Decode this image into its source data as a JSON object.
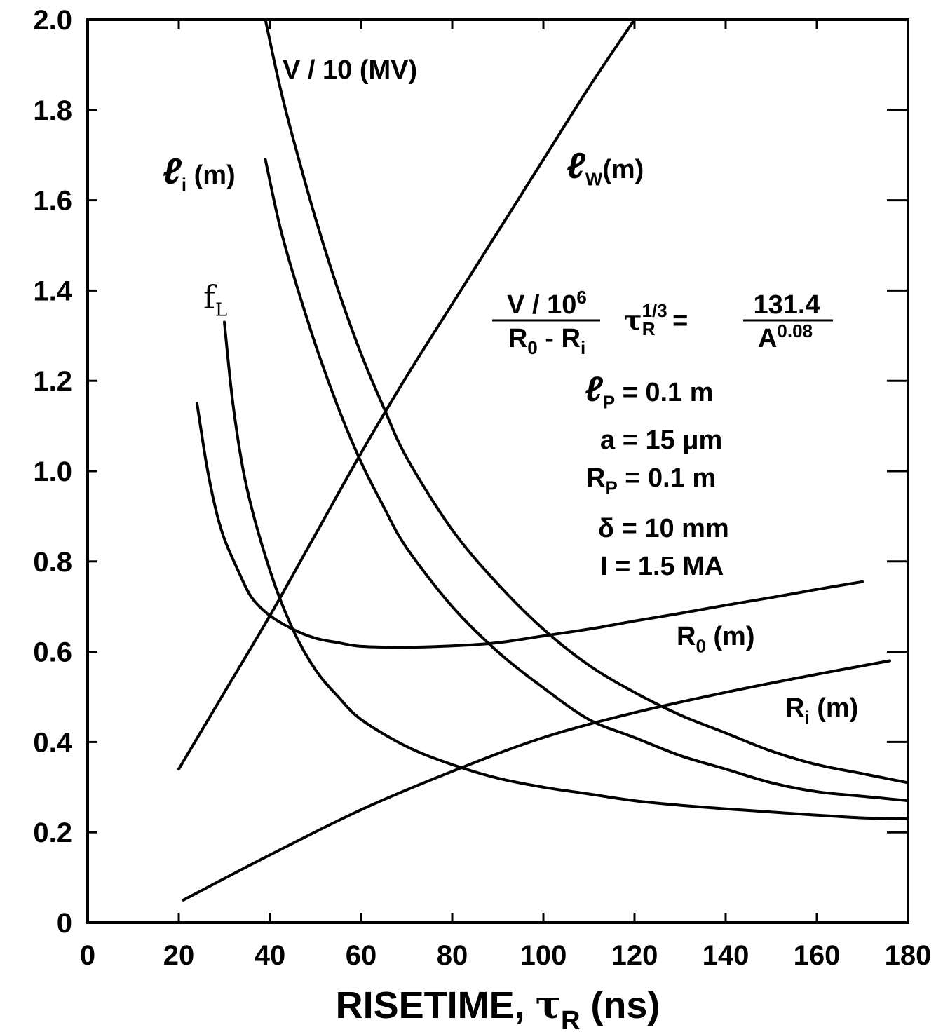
{
  "chart_data": {
    "type": "line",
    "xlabel_parts": {
      "main": "RISETIME, ",
      "symbol": "τ",
      "sub": "R",
      "unit": " (ns)"
    },
    "xlim": [
      0,
      180
    ],
    "ylim": [
      0,
      2.0
    ],
    "x_ticks": [
      "0",
      "20",
      "40",
      "60",
      "80",
      "100",
      "120",
      "140",
      "160",
      "180"
    ],
    "y_ticks": [
      "0",
      "0.2",
      "0.4",
      "0.6",
      "0.8",
      "1.0",
      "1.2",
      "1.4",
      "1.6",
      "1.8",
      "2.0"
    ],
    "series": [
      {
        "key": "v10",
        "label_parts": {
          "main": "V / 10 (MV)"
        },
        "x": [
          39,
          42,
          45,
          50,
          55,
          60,
          65,
          70,
          80,
          90,
          100,
          110,
          120,
          130,
          140,
          150,
          160,
          170,
          180
        ],
        "y": [
          2.0,
          1.86,
          1.74,
          1.56,
          1.4,
          1.26,
          1.14,
          1.03,
          0.87,
          0.75,
          0.65,
          0.57,
          0.51,
          0.46,
          0.42,
          0.38,
          0.35,
          0.33,
          0.31
        ]
      },
      {
        "key": "li",
        "label_parts": {
          "main": "ℓ",
          "sub": "i",
          "unit": " (m)"
        },
        "x": [
          39,
          42,
          45,
          50,
          55,
          60,
          65,
          70,
          80,
          90,
          100,
          110,
          120,
          130,
          140,
          150,
          160,
          170,
          180
        ],
        "y": [
          1.69,
          1.55,
          1.44,
          1.28,
          1.14,
          1.02,
          0.92,
          0.83,
          0.7,
          0.6,
          0.52,
          0.45,
          0.41,
          0.37,
          0.34,
          0.31,
          0.29,
          0.28,
          0.27
        ]
      },
      {
        "key": "fl",
        "label_parts": {
          "main": "f",
          "sub": "L"
        },
        "x": [
          30,
          32,
          35,
          40,
          45,
          50,
          55,
          60,
          70,
          80,
          90,
          100,
          110,
          120,
          130,
          140,
          150,
          160,
          170,
          180
        ],
        "y": [
          1.33,
          1.14,
          0.96,
          0.78,
          0.65,
          0.56,
          0.5,
          0.45,
          0.39,
          0.35,
          0.32,
          0.3,
          0.285,
          0.27,
          0.26,
          0.252,
          0.245,
          0.238,
          0.232,
          0.23
        ]
      },
      {
        "key": "r0",
        "label_parts": {
          "main": "R",
          "sub": "0",
          "unit": " (m)"
        },
        "x": [
          24,
          26,
          28,
          30,
          33,
          36,
          40,
          45,
          50,
          55,
          60,
          70,
          80,
          90,
          100,
          110,
          120,
          130,
          140,
          150,
          160,
          170
        ],
        "y": [
          1.15,
          1.02,
          0.92,
          0.85,
          0.78,
          0.72,
          0.68,
          0.65,
          0.63,
          0.62,
          0.612,
          0.61,
          0.613,
          0.62,
          0.635,
          0.65,
          0.668,
          0.685,
          0.703,
          0.72,
          0.738,
          0.755
        ]
      },
      {
        "key": "ri",
        "label_parts": {
          "main": "R",
          "sub": "i",
          "unit": " (m)"
        },
        "x": [
          21,
          40,
          60,
          80,
          100,
          120,
          140,
          160,
          176
        ],
        "y": [
          0.05,
          0.15,
          0.25,
          0.335,
          0.41,
          0.465,
          0.51,
          0.55,
          0.58
        ]
      },
      {
        "key": "lw",
        "label_parts": {
          "main": "ℓ",
          "sub": "W",
          "unit": "(m)"
        },
        "x": [
          20,
          30,
          40,
          50,
          60,
          70,
          80,
          90,
          100,
          110,
          120
        ],
        "y": [
          0.34,
          0.51,
          0.68,
          0.86,
          1.04,
          1.21,
          1.37,
          1.53,
          1.69,
          1.85,
          2.0
        ]
      }
    ],
    "formula": {
      "num": "V / 10",
      "num_sup": "6",
      "den_a": "R",
      "den_a_sub": "0",
      "den_mid": " - R",
      "den_b_sub": "i",
      "tau": "τ",
      "tau_sub": "R",
      "tau_sup": "1/3",
      "eq": " =",
      "rhs_num": "131.4",
      "rhs_den": "A",
      "rhs_den_sup": "0.08"
    },
    "parameters": [
      {
        "key": "lp",
        "parts": {
          "main": "ℓ",
          "sub": "P",
          "rest": " = 0.1 m"
        }
      },
      {
        "key": "a",
        "parts": {
          "main": "a = 15 μm"
        }
      },
      {
        "key": "rp",
        "parts": {
          "main": "R",
          "sub": "P",
          "rest": " = 0.1 m"
        }
      },
      {
        "key": "delta",
        "parts": {
          "main": "δ = 10 mm"
        }
      },
      {
        "key": "current",
        "parts": {
          "main": "I = 1.5 MA"
        }
      }
    ]
  }
}
